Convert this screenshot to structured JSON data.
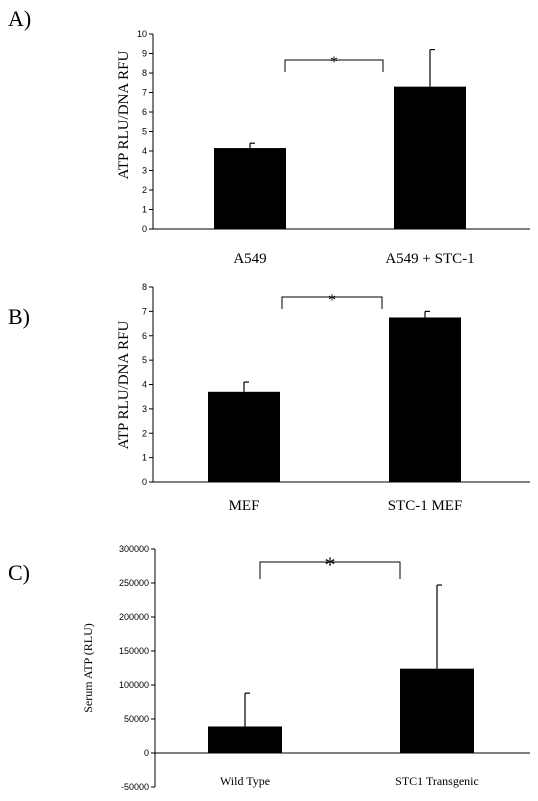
{
  "chart_data": [
    {
      "panel": "A)",
      "type": "bar",
      "ylabel": "ATP RLU/DNA RFU",
      "ylim": [
        0,
        10
      ],
      "yticks": [
        "0",
        "1",
        "2",
        "3",
        "4",
        "5",
        "6",
        "7",
        "8",
        "9",
        "10"
      ],
      "categories": [
        "A549",
        "A549 + STC-1"
      ],
      "values": [
        4.15,
        7.3
      ],
      "errors": [
        0.25,
        1.9
      ],
      "significance": "*",
      "bar_color": "#000000"
    },
    {
      "panel": "B)",
      "type": "bar",
      "ylabel": "ATP RLU/DNA RFU",
      "ylim": [
        0,
        8
      ],
      "yticks": [
        "0",
        "1",
        "2",
        "3",
        "4",
        "5",
        "6",
        "7",
        "8"
      ],
      "categories": [
        "MEF",
        "STC-1 MEF"
      ],
      "values": [
        3.7,
        6.75
      ],
      "errors": [
        0.4,
        0.25
      ],
      "significance": "*",
      "bar_color": "#000000"
    },
    {
      "panel": "C)",
      "type": "bar",
      "ylabel": "Serum ATP (RLU)",
      "ylim": [
        -50000,
        300000
      ],
      "yticks": [
        "-50000",
        "0",
        "50000",
        "100000",
        "150000",
        "200000",
        "250000",
        "300000"
      ],
      "categories": [
        "Wild Type",
        "STC1 Transgenic"
      ],
      "values": [
        39000,
        124000
      ],
      "errors": [
        49000,
        123000
      ],
      "significance": "*",
      "bar_color": "#000000"
    }
  ]
}
